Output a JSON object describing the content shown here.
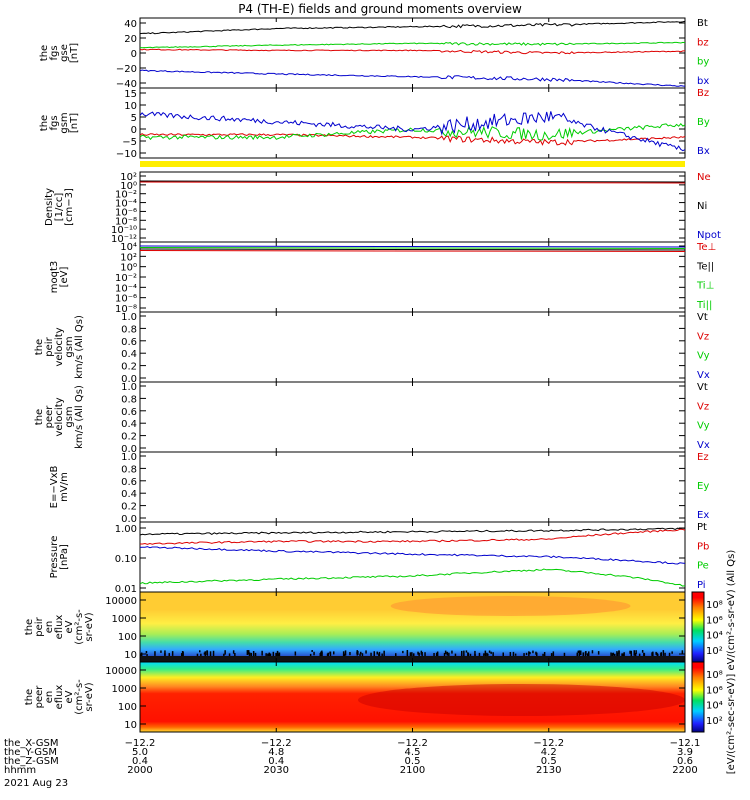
{
  "title": "P4 (TH-E) fields and ground moments overview",
  "date_label": "2021 Aug 23",
  "colors": {
    "black": "#000000",
    "red": "#dd0000",
    "green": "#00cc00",
    "blue": "#0000cc",
    "yellow": "#ffee00"
  },
  "panels": [
    {
      "key": "fgs_gse",
      "ylabel": [
        "the",
        "fgs",
        "gse",
        "[nT]"
      ],
      "scale": "linear",
      "ylim": [
        -40,
        40
      ],
      "ticks": [
        "40",
        "20",
        "0",
        "−20",
        "−40"
      ],
      "legend": [
        {
          "text": "Bt",
          "color": "#000000"
        },
        {
          "text": "bz",
          "color": "#dd0000"
        },
        {
          "text": "by",
          "color": "#00cc00"
        },
        {
          "text": "bx",
          "color": "#0000cc"
        }
      ]
    },
    {
      "key": "fgs_gsm",
      "ylabel": [
        "the",
        "fgs",
        "gsm",
        "[nT]"
      ],
      "scale": "linear",
      "ylim": [
        -12,
        15
      ],
      "ticks": [
        "15",
        "10",
        "5",
        "0",
        "−5",
        "−10"
      ],
      "legend": [
        {
          "text": "Bz",
          "color": "#dd0000"
        },
        {
          "text": "By",
          "color": "#00cc00"
        },
        {
          "text": "Bx",
          "color": "#0000cc"
        }
      ]
    },
    {
      "key": "density",
      "ylabel": [
        "Density",
        "[1/cc]",
        "[cm−3]"
      ],
      "scale": "log",
      "ticks": [
        "10²",
        "10⁰",
        "10⁻²",
        "10⁻⁴",
        "10⁻⁶",
        "10⁻⁸",
        "10⁻¹⁰",
        "10⁻¹²"
      ],
      "legend": [
        {
          "text": "Ne",
          "color": "#dd0000"
        },
        {
          "text": "Ni",
          "color": "#000000"
        },
        {
          "text": "Npot",
          "color": "#0000cc"
        }
      ]
    },
    {
      "key": "temperature",
      "ylabel": [
        "moqt3",
        "[eV]"
      ],
      "scale": "log",
      "ticks": [
        "10⁴",
        "10²",
        "10⁰",
        "10⁻²",
        "10⁻⁴",
        "10⁻⁶",
        "10⁻⁸"
      ],
      "legend": [
        {
          "text": "Te⊥",
          "color": "#dd0000"
        },
        {
          "text": "Te||",
          "color": "#000000"
        },
        {
          "text": "Ti⊥",
          "color": "#00cc00"
        },
        {
          "text": "Ti||",
          "color": "#00cc00"
        }
      ]
    },
    {
      "key": "peir_velocity",
      "ylabel": [
        "the",
        "peir",
        "velocity",
        "gsm",
        "km/s (All Qs)"
      ],
      "scale": "linear",
      "ticks": [
        "1.0",
        "0.8",
        "0.6",
        "0.4",
        "0.2",
        "0.0"
      ],
      "legend": [
        {
          "text": "Vt",
          "color": "#000000"
        },
        {
          "text": "Vz",
          "color": "#dd0000"
        },
        {
          "text": "Vy",
          "color": "#00cc00"
        },
        {
          "text": "Vx",
          "color": "#0000cc"
        }
      ]
    },
    {
      "key": "peer_velocity",
      "ylabel": [
        "the",
        "peer",
        "velocity",
        "gsm",
        "km/s (All Qs)"
      ],
      "scale": "linear",
      "ticks": [
        "1.0",
        "0.8",
        "0.6",
        "0.4",
        "0.2",
        "0.0"
      ],
      "legend": [
        {
          "text": "Vt",
          "color": "#000000"
        },
        {
          "text": "Vz",
          "color": "#dd0000"
        },
        {
          "text": "Vy",
          "color": "#00cc00"
        },
        {
          "text": "Vx",
          "color": "#0000cc"
        }
      ]
    },
    {
      "key": "efield",
      "ylabel": [
        "E=−VxB",
        "mV/m"
      ],
      "scale": "linear",
      "ticks": [
        "1.0",
        "0.8",
        "0.6",
        "0.4",
        "0.2",
        "0.0"
      ],
      "legend": [
        {
          "text": "Ez",
          "color": "#dd0000"
        },
        {
          "text": "Ey",
          "color": "#00cc00"
        },
        {
          "text": "Ex",
          "color": "#0000cc"
        }
      ]
    },
    {
      "key": "pressure",
      "ylabel": [
        "Pressure",
        "[nPa]"
      ],
      "scale": "log",
      "ticks": [
        "1.00",
        "0.10",
        "0.01"
      ],
      "legend": [
        {
          "text": "Pt",
          "color": "#000000"
        },
        {
          "text": "Pb",
          "color": "#dd0000"
        },
        {
          "text": "Pe",
          "color": "#00cc00"
        },
        {
          "text": "Pi",
          "color": "#0000cc"
        }
      ]
    },
    {
      "key": "peir_spec",
      "ylabel": [
        "the",
        "peir",
        "en",
        "eflux",
        "eV",
        "(cm²-s-",
        "sr-eV)"
      ],
      "scale": "log",
      "ticks": [
        "10000",
        "1000",
        "100",
        "10"
      ],
      "colorbar_ticks": [
        "10⁸",
        "10⁶",
        "10⁴",
        "10²"
      ]
    },
    {
      "key": "peer_spec",
      "ylabel": [
        "the",
        "peer",
        "en",
        "eflux",
        "eV",
        "(cm²-s-",
        "sr-eV)"
      ],
      "scale": "log",
      "ticks": [
        "10000",
        "1000",
        "100",
        "10"
      ],
      "colorbar_ticks": [
        "10⁸",
        "10⁶",
        "10⁴",
        "10²"
      ]
    }
  ],
  "colorbar_label": "[eV/(cm²-sec-sr-eV)] eV/(cm²-s-sr-eV) (All Qs)",
  "ephemeris": {
    "labels": [
      "the_X-GSM",
      "the_Y-GSM",
      "the_Z-GSM",
      "hhmm"
    ],
    "columns": [
      [
        "−12.2",
        "5.0",
        "0.4",
        "2000"
      ],
      [
        "−12.2",
        "4.8",
        "0.4",
        "2030"
      ],
      [
        "−12.2",
        "4.5",
        "0.5",
        "2100"
      ],
      [
        "−12.2",
        "4.2",
        "0.5",
        "2130"
      ],
      [
        "−12.1",
        "3.9",
        "0.6",
        "2200"
      ]
    ]
  },
  "chart_data": {
    "type": "line",
    "title": "P4 (TH-E) fields and ground moments overview",
    "x": [
      "2000",
      "2030",
      "2100",
      "2130",
      "2200"
    ],
    "xlabel": "hhmm",
    "panels": [
      {
        "name": "fgs gse",
        "ylim": [
          -40,
          40
        ],
        "series": [
          {
            "name": "Bt",
            "values": [
              22,
              28,
              30,
              32,
              36
            ]
          },
          {
            "name": "bz",
            "values": [
              4,
              3,
              3,
              0,
              2
            ]
          },
          {
            "name": "by",
            "values": [
              6,
              9,
              11,
              10,
              12
            ]
          },
          {
            "name": "bx",
            "values": [
              -20,
              -24,
              -27,
              -30,
              -38
            ]
          }
        ]
      },
      {
        "name": "fgs gsm",
        "ylim": [
          -12,
          15
        ],
        "series": [
          {
            "name": "Bz",
            "values": [
              -3,
              -3,
              -4,
              -6,
              -4
            ]
          },
          {
            "name": "By",
            "values": [
              -4,
              -4,
              -1,
              -3,
              1
            ]
          },
          {
            "name": "Bx",
            "values": [
              5,
              2,
              -1,
              4,
              -9
            ]
          }
        ]
      },
      {
        "name": "Pressure",
        "scale": "log",
        "series": [
          {
            "name": "Pt",
            "values": [
              0.5,
              0.55,
              0.6,
              0.65,
              0.75
            ]
          },
          {
            "name": "Pb",
            "values": [
              0.25,
              0.3,
              0.3,
              0.35,
              0.7
            ]
          },
          {
            "name": "Pe",
            "values": [
              0.015,
              0.02,
              0.025,
              0.04,
              0.012
            ]
          },
          {
            "name": "Pi",
            "values": [
              0.2,
              0.15,
              0.12,
              0.1,
              0.06
            ]
          }
        ]
      }
    ]
  }
}
